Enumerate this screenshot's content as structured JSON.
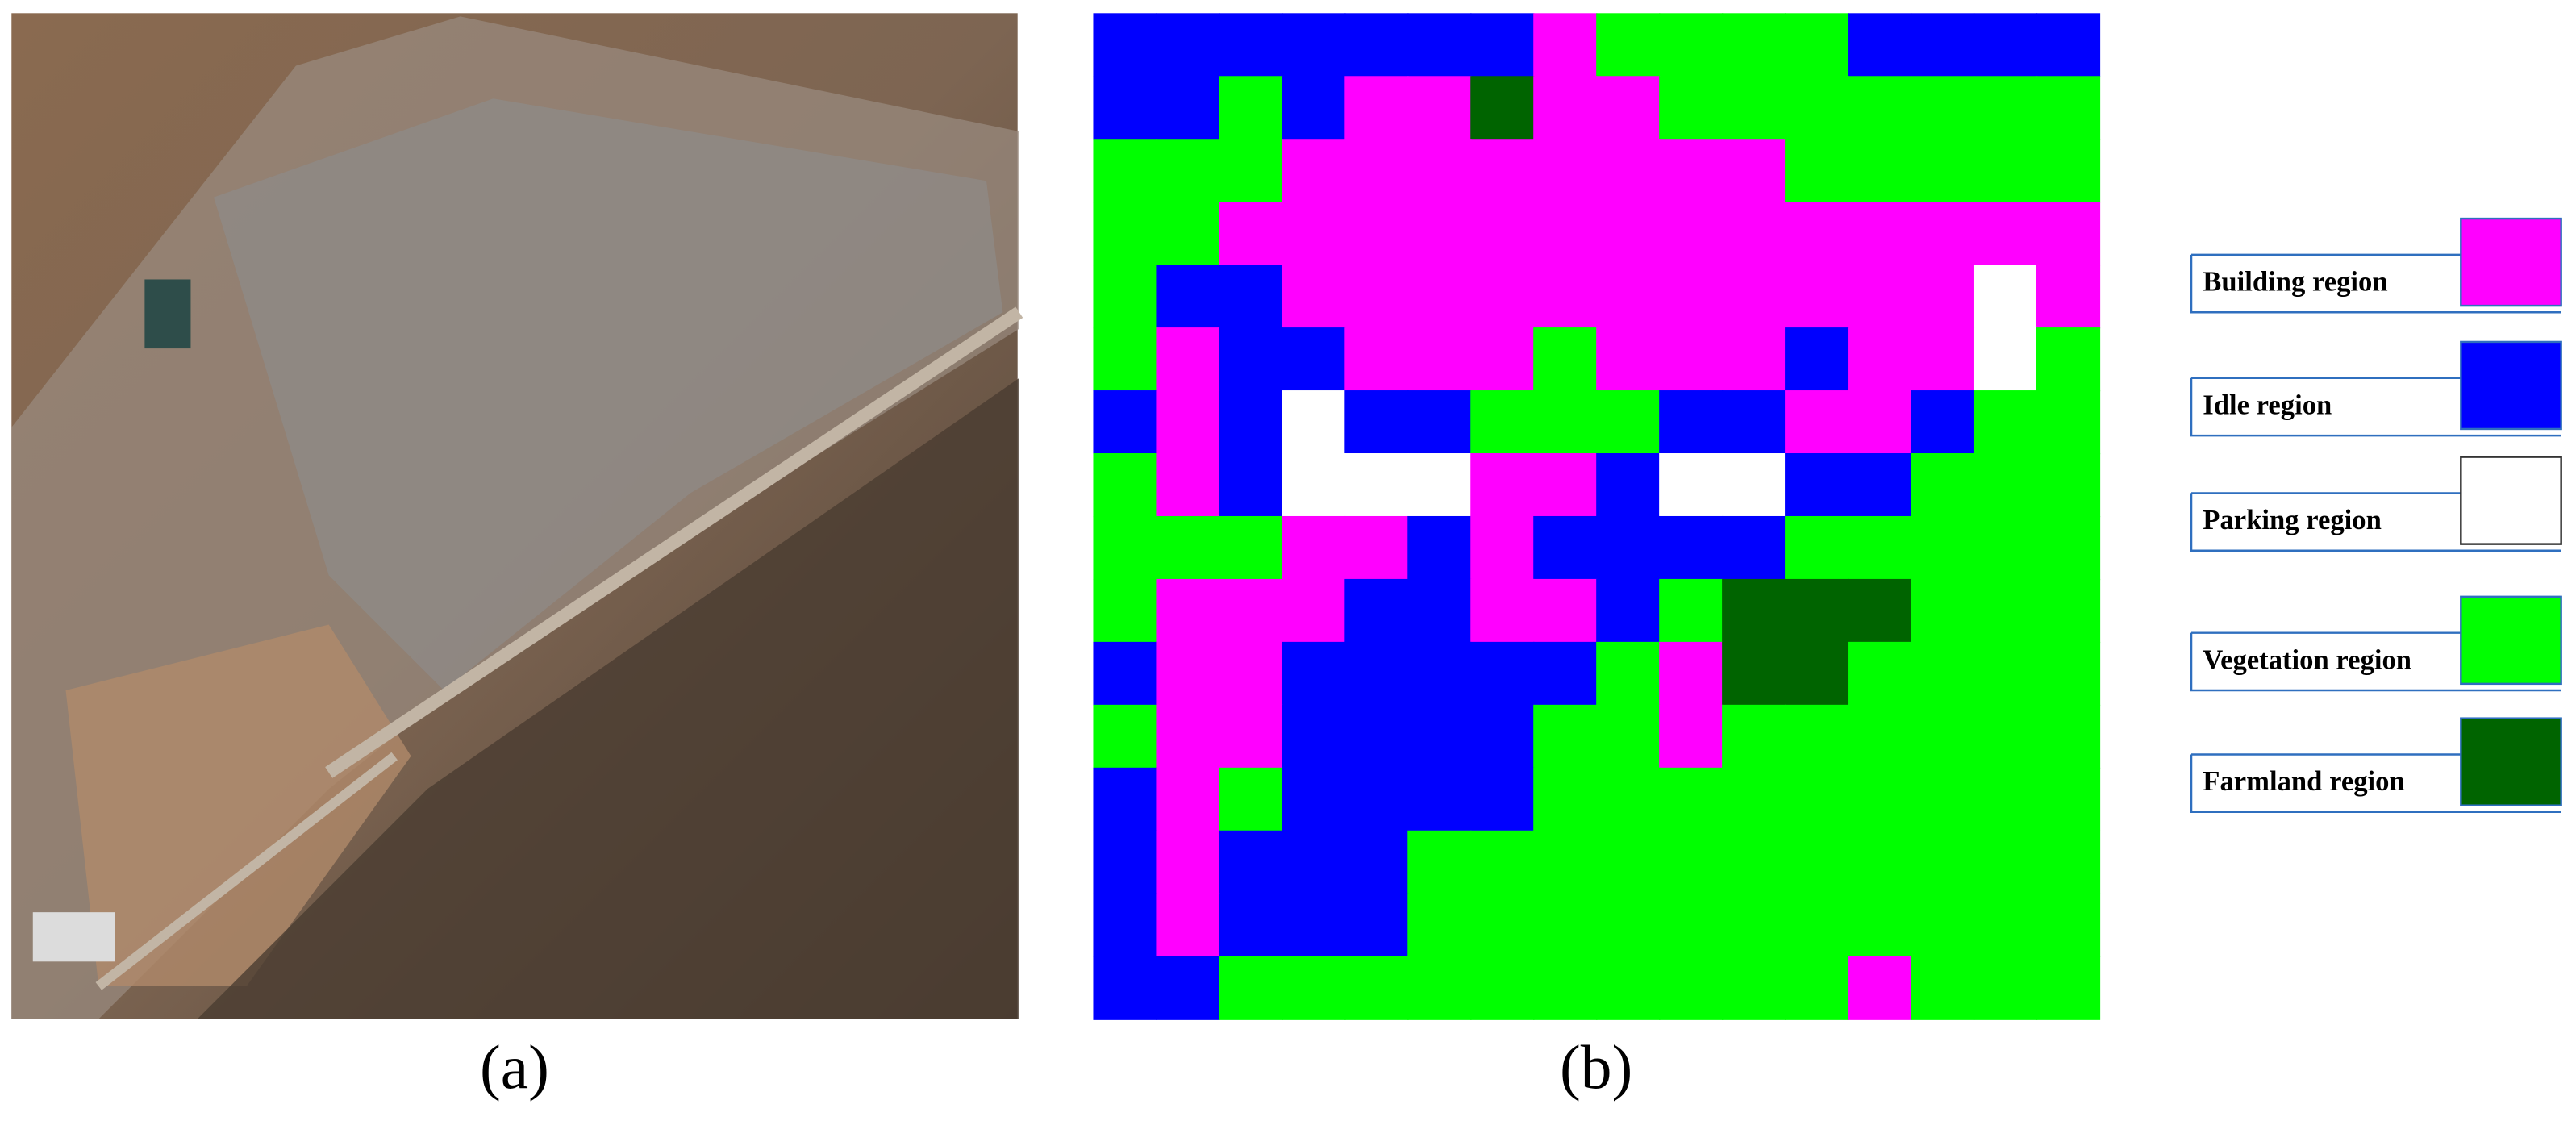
{
  "panels": [
    {
      "caption": "(a)"
    },
    {
      "caption": "(b)"
    }
  ],
  "legend": {
    "items": [
      {
        "label": "Building region",
        "color": "#ff00ff"
      },
      {
        "label": "Idle region",
        "color": "#0000ff"
      },
      {
        "label": "Parking region",
        "color": "#ffffff"
      },
      {
        "label": "Vegetation region",
        "color": "#00ff00"
      },
      {
        "label": "Farmland region",
        "color": "#006400"
      }
    ]
  }
}
